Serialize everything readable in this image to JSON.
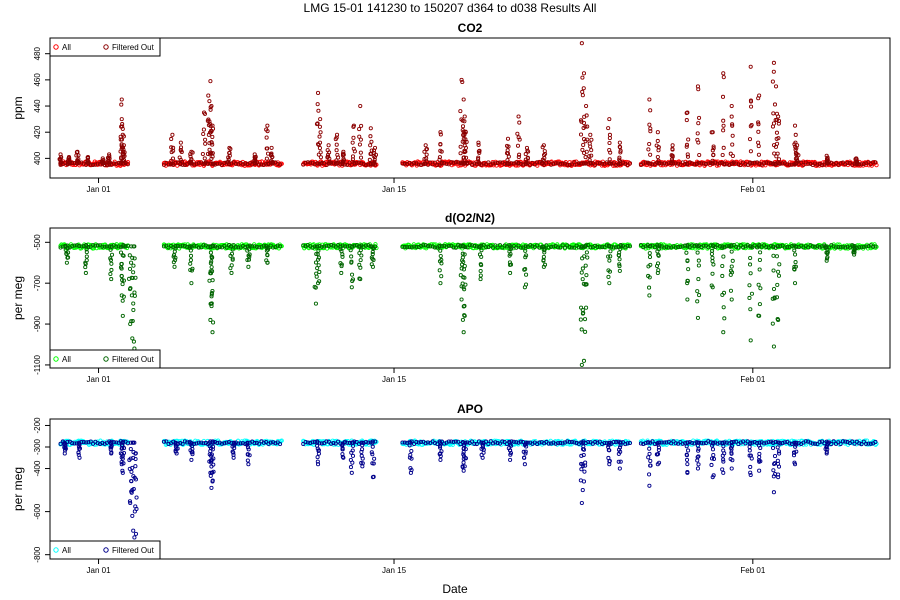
{
  "page_title": "LMG   15-01    141230 to 150207    d364 to d038   Results All",
  "x_axis_label": "Date",
  "chart_data": [
    {
      "type": "scatter",
      "title": "CO2",
      "ylabel": "ppm",
      "ylim": [
        385,
        492
      ],
      "yticks": [
        400,
        420,
        440,
        460,
        480
      ],
      "x_tick_labels": [
        "Jan 01",
        "Jan 15",
        "Feb 01"
      ],
      "x_tick_days": [
        2,
        16,
        33
      ],
      "xlim": [
        -0.3,
        39.5
      ],
      "legend": {
        "entries": [
          "All",
          "Filtered Out"
        ],
        "position": "top-left"
      },
      "colors": {
        "all": "#ff0000",
        "filtered": "#8b0000"
      },
      "data_segments": [
        [
          0.2,
          3.4
        ],
        [
          5.1,
          10.7
        ],
        [
          11.7,
          15.2
        ],
        [
          16.4,
          27.2
        ],
        [
          27.7,
          38.9
        ]
      ],
      "baseline": 396,
      "spikes": [
        {
          "x": 0.2,
          "y": 403
        },
        {
          "x": 0.6,
          "y": 401
        },
        {
          "x": 1.0,
          "y": 405
        },
        {
          "x": 1.5,
          "y": 401
        },
        {
          "x": 2.2,
          "y": 400
        },
        {
          "x": 2.5,
          "y": 403
        },
        {
          "x": 3.1,
          "y": 445
        },
        {
          "x": 3.1,
          "y": 430
        },
        {
          "x": 3.15,
          "y": 418
        },
        {
          "x": 3.2,
          "y": 410
        },
        {
          "x": 5.5,
          "y": 418
        },
        {
          "x": 5.9,
          "y": 412
        },
        {
          "x": 6.4,
          "y": 405
        },
        {
          "x": 7.0,
          "y": 435
        },
        {
          "x": 7.2,
          "y": 448
        },
        {
          "x": 7.3,
          "y": 459
        },
        {
          "x": 7.35,
          "y": 440
        },
        {
          "x": 7.4,
          "y": 425
        },
        {
          "x": 8.2,
          "y": 408
        },
        {
          "x": 9.4,
          "y": 403
        },
        {
          "x": 10.0,
          "y": 425
        },
        {
          "x": 10.2,
          "y": 408
        },
        {
          "x": 12.4,
          "y": 450
        },
        {
          "x": 12.5,
          "y": 430
        },
        {
          "x": 12.9,
          "y": 410
        },
        {
          "x": 13.3,
          "y": 418
        },
        {
          "x": 13.6,
          "y": 405
        },
        {
          "x": 14.1,
          "y": 425
        },
        {
          "x": 14.4,
          "y": 440
        },
        {
          "x": 14.9,
          "y": 423
        },
        {
          "x": 15.1,
          "y": 408
        },
        {
          "x": 17.5,
          "y": 410
        },
        {
          "x": 18.2,
          "y": 420
        },
        {
          "x": 19.2,
          "y": 460
        },
        {
          "x": 19.3,
          "y": 445
        },
        {
          "x": 19.35,
          "y": 432
        },
        {
          "x": 19.4,
          "y": 420
        },
        {
          "x": 20.0,
          "y": 412
        },
        {
          "x": 21.4,
          "y": 415
        },
        {
          "x": 21.9,
          "y": 432
        },
        {
          "x": 22.3,
          "y": 408
        },
        {
          "x": 23.1,
          "y": 410
        },
        {
          "x": 24.9,
          "y": 488
        },
        {
          "x": 25.0,
          "y": 465
        },
        {
          "x": 25.1,
          "y": 440
        },
        {
          "x": 25.3,
          "y": 418
        },
        {
          "x": 26.2,
          "y": 430
        },
        {
          "x": 26.7,
          "y": 412
        },
        {
          "x": 28.1,
          "y": 445
        },
        {
          "x": 28.5,
          "y": 420
        },
        {
          "x": 29.2,
          "y": 410
        },
        {
          "x": 29.9,
          "y": 435
        },
        {
          "x": 30.4,
          "y": 455
        },
        {
          "x": 31.1,
          "y": 420
        },
        {
          "x": 31.6,
          "y": 465
        },
        {
          "x": 32.0,
          "y": 440
        },
        {
          "x": 32.9,
          "y": 470
        },
        {
          "x": 33.3,
          "y": 448
        },
        {
          "x": 34.0,
          "y": 473
        },
        {
          "x": 34.1,
          "y": 455
        },
        {
          "x": 34.2,
          "y": 432
        },
        {
          "x": 35.0,
          "y": 425
        },
        {
          "x": 35.1,
          "y": 410
        },
        {
          "x": 36.5,
          "y": 402
        },
        {
          "x": 37.9,
          "y": 400
        }
      ]
    },
    {
      "type": "scatter",
      "title": "d(O2/N2)",
      "ylabel": "per meg",
      "ylim": [
        -1115,
        -430
      ],
      "yticks": [
        -500,
        -700,
        -900,
        -1100
      ],
      "x_tick_labels": [
        "Jan 01",
        "Jan 15",
        "Feb 01"
      ],
      "x_tick_days": [
        2,
        16,
        33
      ],
      "xlim": [
        -0.3,
        39.5
      ],
      "legend": {
        "entries": [
          "All",
          "Filtered Out"
        ],
        "position": "bottom-left"
      },
      "colors": {
        "all": "#00ff00",
        "filtered": "#006400"
      },
      "data_segments": [
        [
          0.2,
          3.4
        ],
        [
          5.1,
          10.7
        ],
        [
          11.7,
          15.2
        ],
        [
          16.4,
          27.2
        ],
        [
          27.7,
          38.9
        ]
      ],
      "baseline": -520,
      "spikes": [
        {
          "x": 0.5,
          "y": -600
        },
        {
          "x": 1.4,
          "y": -650
        },
        {
          "x": 2.6,
          "y": -680
        },
        {
          "x": 3.1,
          "y": -760
        },
        {
          "x": 3.15,
          "y": -860
        },
        {
          "x": 3.5,
          "y": -900
        },
        {
          "x": 3.6,
          "y": -970
        },
        {
          "x": 3.7,
          "y": -1020
        },
        {
          "x": 5.6,
          "y": -620
        },
        {
          "x": 6.4,
          "y": -700
        },
        {
          "x": 7.3,
          "y": -880
        },
        {
          "x": 7.35,
          "y": -800
        },
        {
          "x": 7.4,
          "y": -940
        },
        {
          "x": 8.3,
          "y": -650
        },
        {
          "x": 9.1,
          "y": -620
        },
        {
          "x": 10.0,
          "y": -600
        },
        {
          "x": 12.3,
          "y": -800
        },
        {
          "x": 12.4,
          "y": -700
        },
        {
          "x": 13.5,
          "y": -650
        },
        {
          "x": 14.0,
          "y": -720
        },
        {
          "x": 14.4,
          "y": -680
        },
        {
          "x": 15.0,
          "y": -620
        },
        {
          "x": 18.2,
          "y": -700
        },
        {
          "x": 19.2,
          "y": -780
        },
        {
          "x": 19.3,
          "y": -940
        },
        {
          "x": 19.35,
          "y": -860
        },
        {
          "x": 20.1,
          "y": -680
        },
        {
          "x": 21.5,
          "y": -650
        },
        {
          "x": 22.2,
          "y": -720
        },
        {
          "x": 23.1,
          "y": -620
        },
        {
          "x": 24.9,
          "y": -1100
        },
        {
          "x": 25.0,
          "y": -1080
        },
        {
          "x": 25.1,
          "y": -820
        },
        {
          "x": 26.2,
          "y": -700
        },
        {
          "x": 26.7,
          "y": -640
        },
        {
          "x": 28.1,
          "y": -760
        },
        {
          "x": 28.5,
          "y": -650
        },
        {
          "x": 29.9,
          "y": -780
        },
        {
          "x": 30.4,
          "y": -870
        },
        {
          "x": 31.1,
          "y": -720
        },
        {
          "x": 31.6,
          "y": -940
        },
        {
          "x": 32.0,
          "y": -780
        },
        {
          "x": 32.9,
          "y": -980
        },
        {
          "x": 33.3,
          "y": -860
        },
        {
          "x": 34.0,
          "y": -1010
        },
        {
          "x": 34.2,
          "y": -880
        },
        {
          "x": 35.0,
          "y": -700
        },
        {
          "x": 36.5,
          "y": -590
        },
        {
          "x": 37.8,
          "y": -560
        }
      ]
    },
    {
      "type": "scatter",
      "title": "APO",
      "ylabel": "per meg",
      "ylim": [
        -820,
        -170
      ],
      "yticks": [
        -200,
        -300,
        -400,
        -600,
        -800
      ],
      "x_tick_labels": [
        "Jan 01",
        "Jan 15",
        "Feb 01"
      ],
      "x_tick_days": [
        2,
        16,
        33
      ],
      "xlim": [
        -0.3,
        39.5
      ],
      "legend": {
        "entries": [
          "All",
          "Filtered Out"
        ],
        "position": "bottom-left"
      },
      "colors": {
        "all": "#00ffff",
        "filtered": "#00008b"
      },
      "data_segments": [
        [
          0.2,
          3.4
        ],
        [
          5.1,
          10.7
        ],
        [
          11.7,
          15.2
        ],
        [
          16.4,
          27.2
        ],
        [
          27.7,
          38.9
        ]
      ],
      "baseline": -280,
      "spikes": [
        {
          "x": 0.4,
          "y": -330
        },
        {
          "x": 1.1,
          "y": -350
        },
        {
          "x": 2.6,
          "y": -330
        },
        {
          "x": 3.1,
          "y": -380
        },
        {
          "x": 3.15,
          "y": -420
        },
        {
          "x": 3.5,
          "y": -560
        },
        {
          "x": 3.6,
          "y": -620
        },
        {
          "x": 3.7,
          "y": -720
        },
        {
          "x": 3.75,
          "y": -790
        },
        {
          "x": 5.7,
          "y": -330
        },
        {
          "x": 6.4,
          "y": -360
        },
        {
          "x": 7.3,
          "y": -420
        },
        {
          "x": 7.35,
          "y": -490
        },
        {
          "x": 7.4,
          "y": -460
        },
        {
          "x": 8.4,
          "y": -350
        },
        {
          "x": 9.1,
          "y": -380
        },
        {
          "x": 12.4,
          "y": -380
        },
        {
          "x": 13.6,
          "y": -350
        },
        {
          "x": 14.0,
          "y": -420
        },
        {
          "x": 14.5,
          "y": -390
        },
        {
          "x": 15.0,
          "y": -440
        },
        {
          "x": 16.8,
          "y": -420
        },
        {
          "x": 18.2,
          "y": -360
        },
        {
          "x": 19.3,
          "y": -410
        },
        {
          "x": 19.35,
          "y": -390
        },
        {
          "x": 20.2,
          "y": -350
        },
        {
          "x": 21.5,
          "y": -360
        },
        {
          "x": 22.2,
          "y": -380
        },
        {
          "x": 24.9,
          "y": -560
        },
        {
          "x": 25.0,
          "y": -460
        },
        {
          "x": 26.2,
          "y": -380
        },
        {
          "x": 26.7,
          "y": -400
        },
        {
          "x": 28.1,
          "y": -480
        },
        {
          "x": 28.5,
          "y": -380
        },
        {
          "x": 29.9,
          "y": -420
        },
        {
          "x": 30.4,
          "y": -400
        },
        {
          "x": 31.1,
          "y": -440
        },
        {
          "x": 31.6,
          "y": -420
        },
        {
          "x": 32.0,
          "y": -400
        },
        {
          "x": 32.9,
          "y": -430
        },
        {
          "x": 33.3,
          "y": -410
        },
        {
          "x": 34.0,
          "y": -510
        },
        {
          "x": 34.2,
          "y": -440
        },
        {
          "x": 35.0,
          "y": -380
        },
        {
          "x": 36.5,
          "y": -330
        }
      ]
    }
  ]
}
